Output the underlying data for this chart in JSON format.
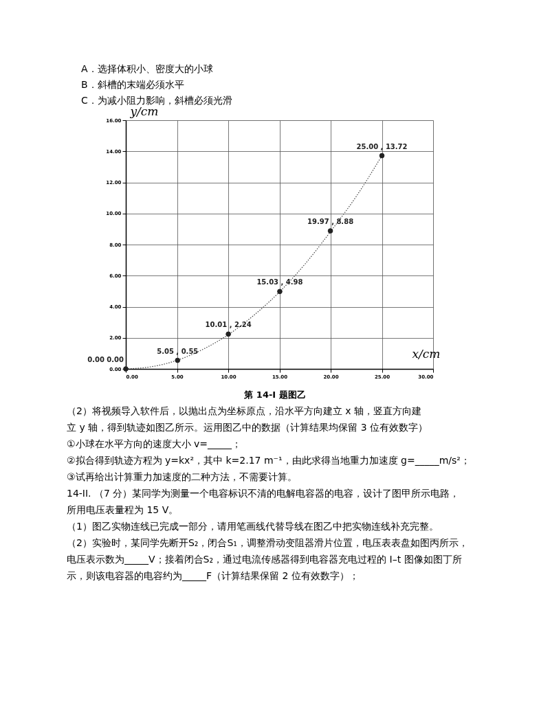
{
  "chart_data": {
    "type": "scatter",
    "xlabel": "x/cm",
    "ylabel": "y/cm",
    "xlim": [
      0,
      30
    ],
    "ylim": [
      0,
      16
    ],
    "xticks": [
      {
        "value": 0,
        "label": "0.00"
      },
      {
        "value": 5,
        "label": "5.00"
      },
      {
        "value": 10,
        "label": "10.00"
      },
      {
        "value": 15,
        "label": "15.00"
      },
      {
        "value": 20,
        "label": "20.00"
      },
      {
        "value": 25,
        "label": "25.00"
      },
      {
        "value": 30,
        "label": "30.00"
      }
    ],
    "yticks": [
      {
        "value": 0,
        "label": "0.00"
      },
      {
        "value": 2,
        "label": "2.00"
      },
      {
        "value": 4,
        "label": "4.00"
      },
      {
        "value": 6,
        "label": "6.00"
      },
      {
        "value": 8,
        "label": "8.00"
      },
      {
        "value": 10,
        "label": "10.00"
      },
      {
        "value": 12,
        "label": "12.00"
      },
      {
        "value": 14,
        "label": "14.00"
      },
      {
        "value": 16,
        "label": "16.00"
      }
    ],
    "grid": true,
    "marker": "circle",
    "series": [
      {
        "color": "#222222",
        "x": [
          0.0,
          5.05,
          10.01,
          15.03,
          19.97,
          25.0
        ],
        "values": [
          0.0,
          0.55,
          2.24,
          4.98,
          8.88,
          13.72
        ]
      },
      {
        "type": "line",
        "marker": "none",
        "color": "#444444",
        "line_style": "dotted",
        "x": [
          0,
          2.5,
          5,
          7.5,
          10,
          12.5,
          15,
          17.5,
          20,
          22.5,
          25
        ],
        "values": [
          0,
          0.14,
          0.55,
          1.25,
          2.2,
          3.45,
          4.95,
          6.75,
          8.85,
          11.1,
          13.72
        ]
      }
    ],
    "annotations": [
      {
        "text": "0.00  0.00",
        "x": 0.0,
        "y": 0.0
      },
      {
        "text": "5.05 , 0.55",
        "x": 5.05,
        "y": 0.55
      },
      {
        "text": "10.01 , 2.24",
        "x": 10.01,
        "y": 2.24
      },
      {
        "text": "15.03 , 4.98",
        "x": 15.03,
        "y": 4.98
      },
      {
        "text": "19.97 , 8.88",
        "x": 19.97,
        "y": 8.88
      },
      {
        "text": "25.00 , 13.72",
        "x": 25.0,
        "y": 13.72
      },
      "A．选择体积小、密度大的小球",
      "B．斜槽的末端必须水平",
      "C．为减小阻力影响，斜槽必须光滑",
      "第 14-I 题图乙",
      "（2）将视频导入软件后，以抛出点为坐标原点，沿水平方向建立 x 轴，竖直方向建",
      "立 y 轴，得到轨迹如图乙所示。运用图乙中的数据（计算结果均保留 3 位有效数字）",
      "①小球在水平方向的速度大小 v=_____；",
      "②拟合得到轨迹方程为 y=kx²，其中 k=2.17 m⁻¹，由此求得当地重力加速度 g=_____m/s²；",
      "③试再给出计算重力加速度的二种方法，不需要计算。",
      "14-II. （7 分）某同学为测量一个电容标识不清的电解电容器的电容，设计了图甲所示电路，",
      "所用电压表量程为 15 V。",
      "（1）图乙实物连线已完成一部分，请用笔画线代替导线在图乙中把实物连线补充完整。",
      "（2）实验时，某同学先断开S₂，闭合S₁，调整滑动变阻器滑片位置，电压表表盘如图丙所示，",
      "电压表示数为_____V；接着闭合S₂，通过电流传感器得到电容器充电过程的 I–t 图像如图丁所",
      "示，则该电容器的电容约为_____F（计算结果保留 2 位有效数字）；"
    ]
  }
}
